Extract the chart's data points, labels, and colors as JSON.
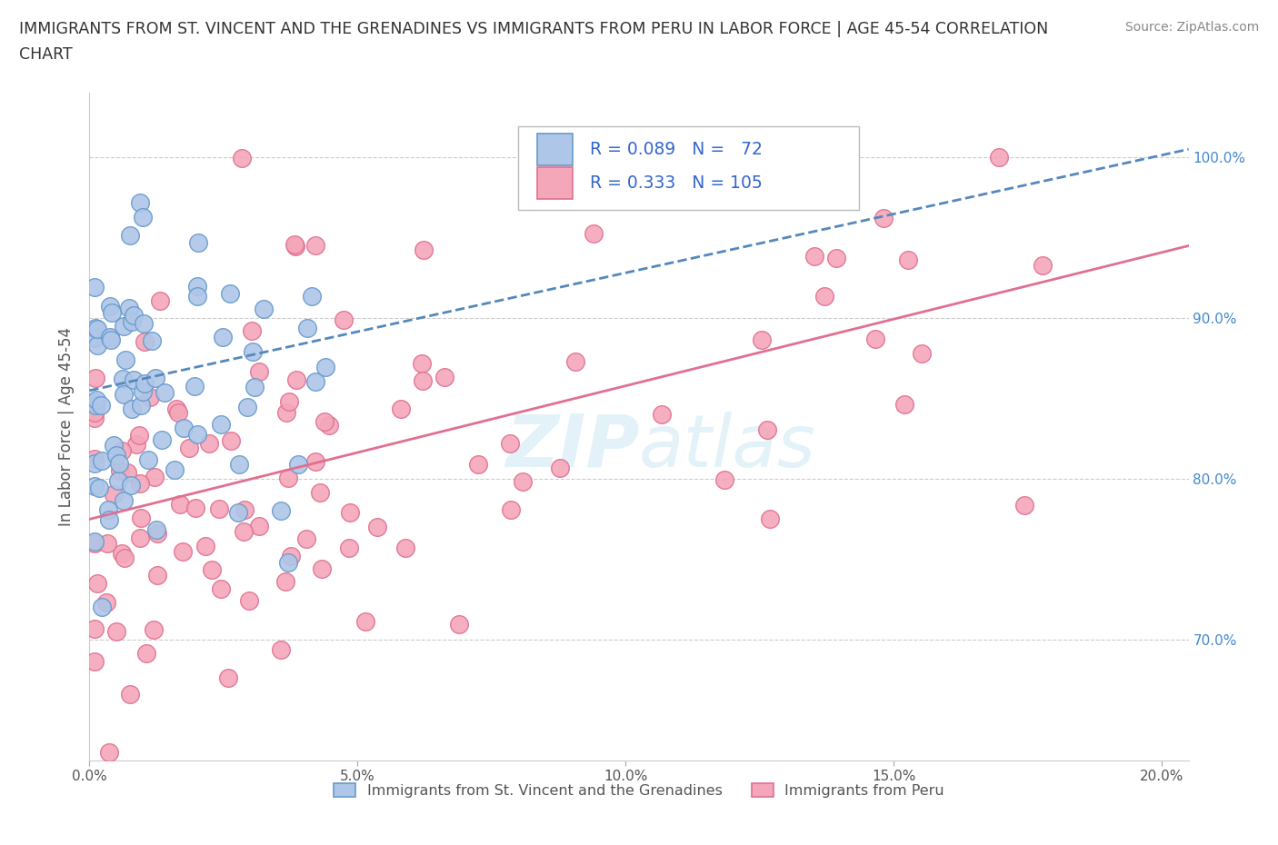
{
  "title_line1": "IMMIGRANTS FROM ST. VINCENT AND THE GRENADINES VS IMMIGRANTS FROM PERU IN LABOR FORCE | AGE 45-54 CORRELATION",
  "title_line2": "CHART",
  "source_text": "Source: ZipAtlas.com",
  "ylabel": "In Labor Force | Age 45-54",
  "xlim": [
    0.0,
    0.205
  ],
  "ylim": [
    0.625,
    1.04
  ],
  "series1_color": "#aec6e8",
  "series1_edge": "#6699cc",
  "series2_color": "#f4a7b9",
  "series2_edge": "#e07090",
  "trend1_color": "#5588bb",
  "trend2_color": "#e07090",
  "watermark": "ZIPatlas",
  "legend_label1": "Immigrants from St. Vincent and the Grenadines",
  "legend_label2": "Immigrants from Peru",
  "trend1_x0": 0.0,
  "trend1_y0": 0.855,
  "trend1_x1": 0.205,
  "trend1_y1": 1.005,
  "trend2_x0": 0.0,
  "trend2_y0": 0.775,
  "trend2_x1": 0.205,
  "trend2_y1": 0.945
}
